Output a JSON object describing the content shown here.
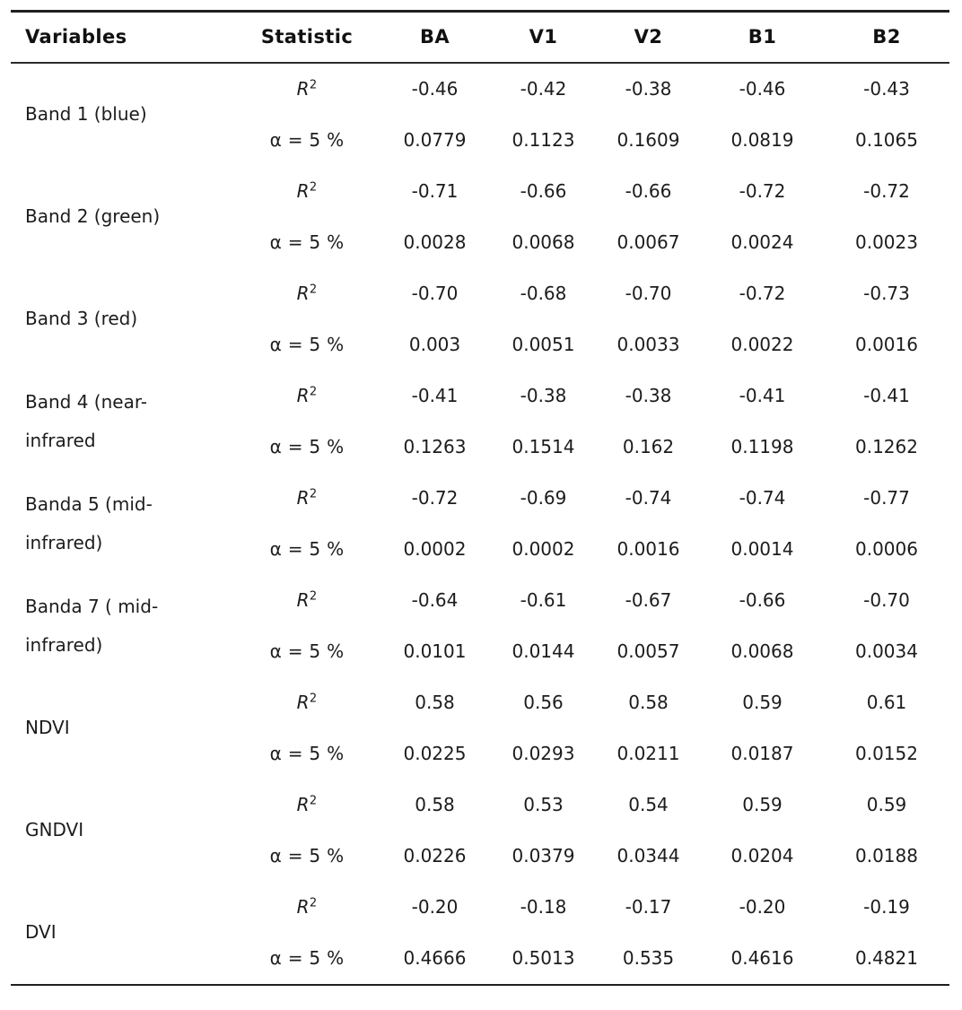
{
  "chart_data": {
    "type": "table",
    "title": "",
    "columns": [
      "Variables",
      "Statistic",
      "BA",
      "V1",
      "V2",
      "B1",
      "B2"
    ],
    "statistic_labels": {
      "r2_base": "R",
      "r2_sup": "2",
      "alpha": "α = 5 %"
    },
    "groups": [
      {
        "variable_lines": [
          "Band 1 (blue)"
        ],
        "r2": [
          "-0.46",
          "-0.42",
          "-0.38",
          "-0.46",
          "-0.43"
        ],
        "alpha": [
          "0.0779",
          "0.1123",
          "0.1609",
          "0.0819",
          "0.1065"
        ]
      },
      {
        "variable_lines": [
          "Band 2 (green)"
        ],
        "r2": [
          "-0.71",
          "-0.66",
          "-0.66",
          "-0.72",
          "-0.72"
        ],
        "alpha": [
          "0.0028",
          "0.0068",
          "0.0067",
          "0.0024",
          "0.0023"
        ]
      },
      {
        "variable_lines": [
          "Band 3 (red)"
        ],
        "r2": [
          "-0.70",
          "-0.68",
          "-0.70",
          "-0.72",
          "-0.73"
        ],
        "alpha": [
          "0.003",
          "0.0051",
          "0.0033",
          "0.0022",
          "0.0016"
        ]
      },
      {
        "variable_lines": [
          "Band 4 (near-",
          "infrared"
        ],
        "r2": [
          "-0.41",
          "-0.38",
          "-0.38",
          "-0.41",
          "-0.41"
        ],
        "alpha": [
          "0.1263",
          "0.1514",
          "0.162",
          "0.1198",
          "0.1262"
        ]
      },
      {
        "variable_lines": [
          "Banda 5 (mid-",
          "infrared)"
        ],
        "r2": [
          "-0.72",
          "-0.69",
          "-0.74",
          "-0.74",
          "-0.77"
        ],
        "alpha": [
          "0.0002",
          "0.0002",
          "0.0016",
          "0.0014",
          "0.0006"
        ]
      },
      {
        "variable_lines": [
          "Banda 7 ( mid-",
          "infrared)"
        ],
        "r2": [
          "-0.64",
          "-0.61",
          "-0.67",
          "-0.66",
          "-0.70"
        ],
        "alpha": [
          "0.0101",
          "0.0144",
          "0.0057",
          "0.0068",
          "0.0034"
        ]
      },
      {
        "variable_lines": [
          "NDVI"
        ],
        "r2": [
          "0.58",
          "0.56",
          "0.58",
          "0.59",
          "0.61"
        ],
        "alpha": [
          "0.0225",
          "0.0293",
          "0.0211",
          "0.0187",
          "0.0152"
        ]
      },
      {
        "variable_lines": [
          "GNDVI"
        ],
        "r2": [
          "0.58",
          "0.53",
          "0.54",
          "0.59",
          "0.59"
        ],
        "alpha": [
          "0.0226",
          "0.0379",
          "0.0344",
          "0.0204",
          "0.0188"
        ]
      },
      {
        "variable_lines": [
          "DVI"
        ],
        "r2": [
          "-0.20",
          "-0.18",
          "-0.17",
          "-0.20",
          "-0.19"
        ],
        "alpha": [
          "0.4666",
          "0.5013",
          "0.535",
          "0.4616",
          "0.4821"
        ]
      }
    ],
    "colors": {
      "text": "#1c1c1c",
      "rule": "#1f1f1f",
      "background": "#ffffff"
    },
    "layout": {
      "grid": "horizontal rules only (top, below header, bottom)"
    }
  }
}
